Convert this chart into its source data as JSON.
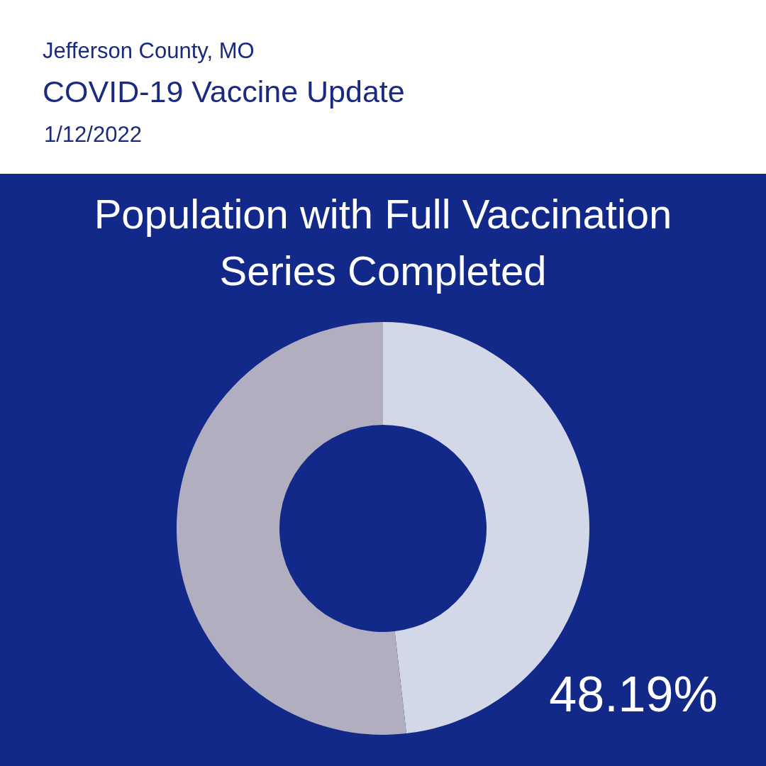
{
  "chart_data": {
    "type": "donut",
    "title": "Population with Full Vaccination Series Completed",
    "subtitle": "COVID-19 Vaccine Update",
    "annotations": [
      "Jefferson County, MO",
      "1/12/2022"
    ],
    "categories": [
      null,
      null
    ],
    "values": [
      48.19,
      51.81
    ],
    "colors": [
      "#d3d8e8",
      "#b1aec0"
    ],
    "value_labels": [
      "48.19%",
      null
    ],
    "legend": false
  }
}
